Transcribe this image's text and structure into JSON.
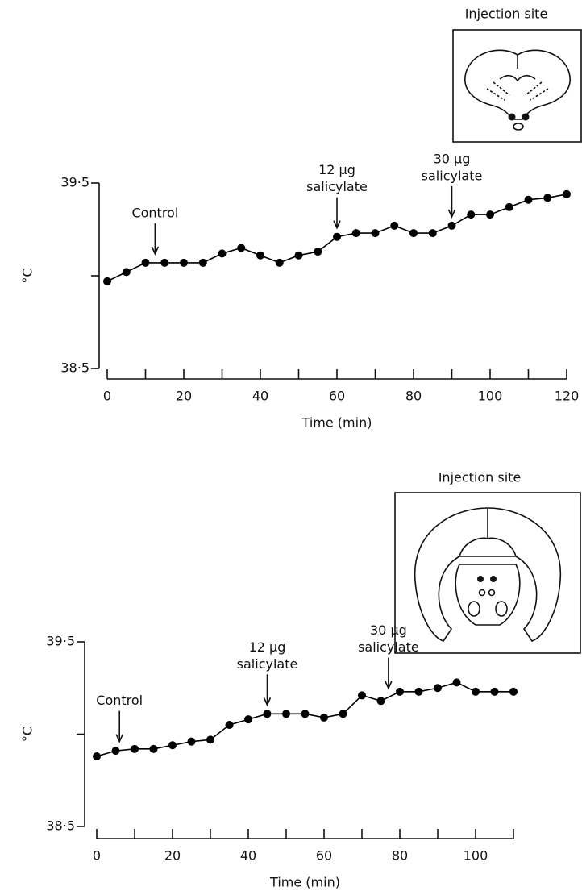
{
  "chart_data": [
    {
      "type": "line",
      "inset_title": "Injection site",
      "y_label": "°C",
      "x_label": "Time (min)",
      "x": [
        0,
        5,
        10,
        15,
        20,
        25,
        30,
        35,
        40,
        45,
        50,
        55,
        60,
        65,
        70,
        75,
        80,
        85,
        90,
        95,
        100,
        105,
        110,
        115,
        120
      ],
      "values": [
        38.97,
        39.02,
        39.07,
        39.07,
        39.07,
        39.07,
        39.12,
        39.15,
        39.11,
        39.07,
        39.11,
        39.13,
        39.21,
        39.23,
        39.23,
        39.27,
        39.23,
        39.23,
        39.27,
        39.33,
        39.33,
        39.37,
        39.41,
        39.42,
        39.44
      ],
      "color": "#000000",
      "xlim": [
        0,
        120
      ],
      "xticks": [
        0,
        20,
        40,
        60,
        80,
        100,
        120
      ],
      "minor_xticks": [
        10,
        30,
        50,
        70,
        90,
        110
      ],
      "ylim": [
        38.5,
        39.5
      ],
      "yticks": [
        {
          "value": 38.5,
          "label": "38·5"
        },
        {
          "value": 39.5,
          "label": "39·5"
        }
      ],
      "minor_yticks": [
        39
      ],
      "annotations": [
        {
          "x": 12.5,
          "lines": [
            "Control"
          ]
        },
        {
          "x": 60,
          "lines": [
            "12 μg",
            "salicylate"
          ]
        },
        {
          "x": 90,
          "lines": [
            "30 μg",
            "salicylate"
          ]
        }
      ]
    },
    {
      "type": "line",
      "inset_title": "Injection site",
      "y_label": "°C",
      "x_label": "Time (min)",
      "x": [
        0,
        5,
        10,
        15,
        20,
        25,
        30,
        35,
        40,
        45,
        50,
        55,
        60,
        65,
        70,
        75,
        80,
        85,
        90,
        95,
        100,
        105,
        110
      ],
      "values": [
        38.88,
        38.91,
        38.92,
        38.92,
        38.94,
        38.96,
        38.97,
        39.05,
        39.08,
        39.11,
        39.11,
        39.11,
        39.09,
        39.11,
        39.21,
        39.18,
        39.23,
        39.23,
        39.25,
        39.28,
        39.23,
        39.23,
        39.23
      ],
      "color": "#000000",
      "xlim": [
        0,
        110
      ],
      "xticks": [
        0,
        20,
        40,
        60,
        80,
        100
      ],
      "minor_xticks": [
        10,
        30,
        50,
        70,
        90,
        110
      ],
      "ylim": [
        38.5,
        39.5
      ],
      "yticks": [
        {
          "value": 38.5,
          "label": "38·5"
        },
        {
          "value": 39.5,
          "label": "39·5"
        }
      ],
      "minor_yticks": [
        39
      ],
      "annotations": [
        {
          "x": 6,
          "lines": [
            "Control"
          ]
        },
        {
          "x": 45,
          "lines": [
            "12 μg",
            "salicylate"
          ]
        },
        {
          "x": 77,
          "lines": [
            "30 μg",
            "salicylate"
          ]
        }
      ]
    }
  ]
}
